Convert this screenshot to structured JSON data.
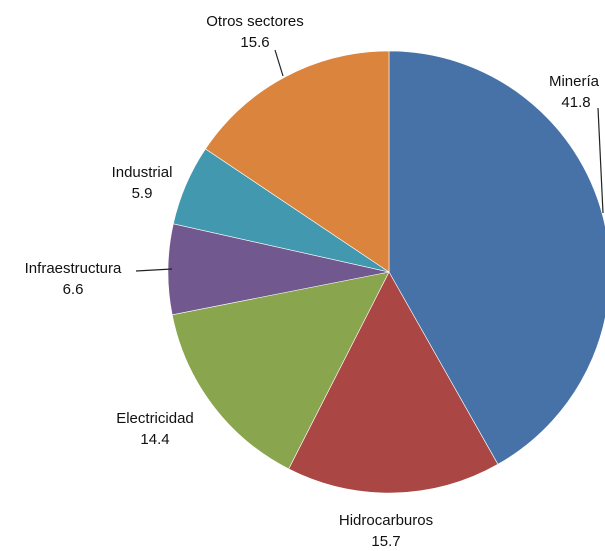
{
  "chart_data": {
    "type": "pie",
    "title": "",
    "slices": [
      {
        "label": "Minería",
        "value": 41.8,
        "value_text": "41.8",
        "color": "#4672a8"
      },
      {
        "label": "Hidrocarburos",
        "value": 15.7,
        "value_text": "15.7",
        "color": "#aa4643"
      },
      {
        "label": "Electricidad",
        "value": 14.4,
        "value_text": "14.4",
        "color": "#89a54e"
      },
      {
        "label": "Infraestructura",
        "value": 6.6,
        "value_text": "6.6",
        "color": "#71588f"
      },
      {
        "label": "Industrial",
        "value": 5.9,
        "value_text": "5.9",
        "color": "#4198af"
      },
      {
        "label": "Otros sectores",
        "value": 15.6,
        "value_text": "15.6",
        "color": "#db843d"
      }
    ],
    "start_angle": "12 o'clock",
    "direction": "clockwise",
    "legend": "none"
  }
}
